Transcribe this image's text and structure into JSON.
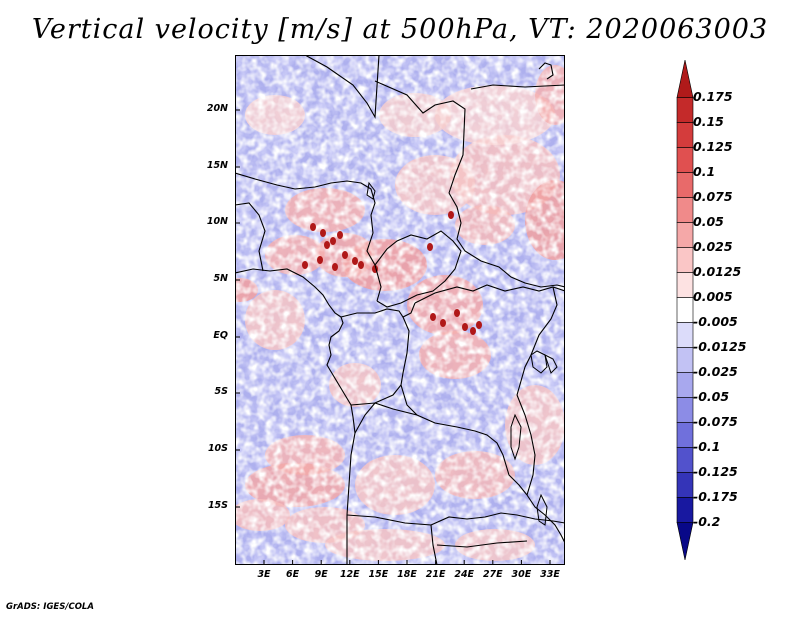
{
  "title": "Vertical velocity [m/s] at 500hPa, VT: 2020063003",
  "credit": "GrADS: IGES/COLA",
  "map": {
    "lat_ticks": [
      "20N",
      "15N",
      "10N",
      "5N",
      "EQ",
      "5S",
      "10S",
      "15S"
    ],
    "lon_ticks": [
      "3E",
      "6E",
      "9E",
      "12E",
      "15E",
      "18E",
      "21E",
      "24E",
      "27E",
      "30E",
      "33E"
    ]
  },
  "colorbar": {
    "labels": [
      "0.175",
      "0.15",
      "0.125",
      "0.1",
      "0.075",
      "0.05",
      "0.025",
      "0.0125",
      "0.005",
      "-0.005",
      "-0.0125",
      "-0.025",
      "-0.05",
      "-0.075",
      "-0.1",
      "-0.125",
      "-0.175",
      "-0.2"
    ],
    "colors": [
      "#b01a1a",
      "#c42a2a",
      "#d43c3c",
      "#e05050",
      "#e86a6a",
      "#f08a8a",
      "#f5a8a8",
      "#fac6c6",
      "#fde2e2",
      "#ffffff",
      "#dcdcfa",
      "#c2c2f4",
      "#a8a8ee",
      "#8c8ce6",
      "#7070dc",
      "#5252cc",
      "#3434b8",
      "#1818a0",
      "#080888"
    ]
  }
}
